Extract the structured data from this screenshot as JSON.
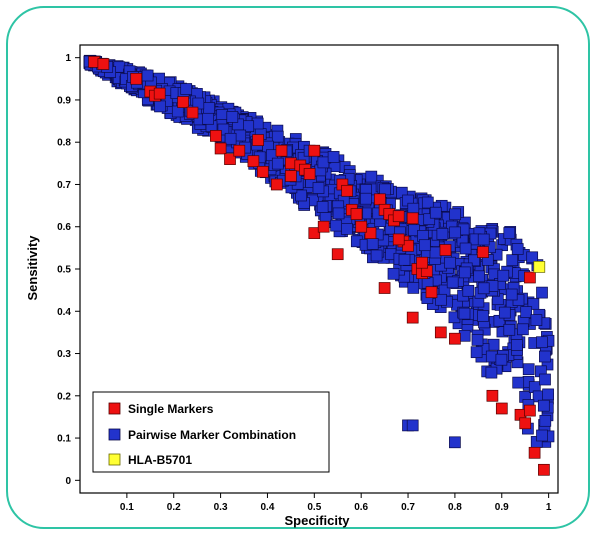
{
  "chart_data": {
    "type": "scatter",
    "title": "",
    "xlabel": "Specificity",
    "ylabel": "Sensitivity",
    "xlim": [
      0,
      1.02
    ],
    "ylim": [
      -0.03,
      1.03
    ],
    "x_ticks": [
      "0.1",
      "0.2",
      "0.3",
      "0.4",
      "0.5",
      "0.6",
      "0.7",
      "0.8",
      "0.9",
      "1"
    ],
    "y_ticks": [
      "0",
      "0.1",
      "0.2",
      "0.3",
      "0.4",
      "0.5",
      "0.6",
      "0.7",
      "0.8",
      "0.9",
      "1"
    ],
    "grid": false,
    "legend_position": "bottom-left",
    "series": [
      {
        "name": "Pairwise Marker Combination",
        "color": "#2233cc",
        "marker": "square",
        "envelope_upper": [
          [
            0.02,
            0.995
          ],
          [
            0.1,
            0.975
          ],
          [
            0.2,
            0.94
          ],
          [
            0.3,
            0.89
          ],
          [
            0.4,
            0.84
          ],
          [
            0.5,
            0.79
          ],
          [
            0.6,
            0.73
          ],
          [
            0.7,
            0.68
          ],
          [
            0.8,
            0.64
          ],
          [
            0.9,
            0.6
          ],
          [
            0.95,
            0.57
          ],
          [
            0.98,
            0.5
          ],
          [
            1.0,
            0.35
          ]
        ],
        "envelope_lower": [
          [
            0.02,
            0.985
          ],
          [
            0.1,
            0.93
          ],
          [
            0.2,
            0.86
          ],
          [
            0.3,
            0.8
          ],
          [
            0.4,
            0.72
          ],
          [
            0.5,
            0.63
          ],
          [
            0.6,
            0.55
          ],
          [
            0.7,
            0.46
          ],
          [
            0.8,
            0.37
          ],
          [
            0.85,
            0.28
          ],
          [
            0.9,
            0.2
          ],
          [
            0.95,
            0.12
          ],
          [
            1.0,
            0.05
          ]
        ],
        "values": [
          [
            0.7,
            0.13
          ],
          [
            0.71,
            0.13
          ],
          [
            0.8,
            0.09
          ]
        ]
      },
      {
        "name": "Single Markers",
        "color": "#ee1111",
        "marker": "square",
        "values": [
          [
            0.03,
            0.99
          ],
          [
            0.05,
            0.985
          ],
          [
            0.12,
            0.95
          ],
          [
            0.15,
            0.92
          ],
          [
            0.16,
            0.91
          ],
          [
            0.17,
            0.915
          ],
          [
            0.22,
            0.895
          ],
          [
            0.24,
            0.87
          ],
          [
            0.29,
            0.815
          ],
          [
            0.3,
            0.785
          ],
          [
            0.32,
            0.76
          ],
          [
            0.34,
            0.78
          ],
          [
            0.37,
            0.755
          ],
          [
            0.38,
            0.805
          ],
          [
            0.39,
            0.73
          ],
          [
            0.43,
            0.78
          ],
          [
            0.45,
            0.75
          ],
          [
            0.47,
            0.745
          ],
          [
            0.48,
            0.735
          ],
          [
            0.49,
            0.725
          ],
          [
            0.5,
            0.78
          ],
          [
            0.42,
            0.7
          ],
          [
            0.5,
            0.585
          ],
          [
            0.52,
            0.6
          ],
          [
            0.55,
            0.535
          ],
          [
            0.56,
            0.7
          ],
          [
            0.57,
            0.685
          ],
          [
            0.58,
            0.64
          ],
          [
            0.59,
            0.63
          ],
          [
            0.62,
            0.585
          ],
          [
            0.64,
            0.665
          ],
          [
            0.65,
            0.64
          ],
          [
            0.66,
            0.63
          ],
          [
            0.67,
            0.615
          ],
          [
            0.68,
            0.625
          ],
          [
            0.69,
            0.565
          ],
          [
            0.7,
            0.555
          ],
          [
            0.71,
            0.62
          ],
          [
            0.72,
            0.5
          ],
          [
            0.73,
            0.49
          ],
          [
            0.74,
            0.495
          ],
          [
            0.75,
            0.445
          ],
          [
            0.73,
            0.515
          ],
          [
            0.78,
            0.545
          ],
          [
            0.65,
            0.455
          ],
          [
            0.71,
            0.385
          ],
          [
            0.77,
            0.35
          ],
          [
            0.8,
            0.335
          ],
          [
            0.86,
            0.54
          ],
          [
            0.88,
            0.2
          ],
          [
            0.9,
            0.17
          ],
          [
            0.94,
            0.155
          ],
          [
            0.95,
            0.135
          ],
          [
            0.96,
            0.165
          ],
          [
            0.97,
            0.065
          ],
          [
            0.99,
            0.025
          ],
          [
            0.96,
            0.48
          ],
          [
            0.68,
            0.57
          ],
          [
            0.6,
            0.6
          ],
          [
            0.45,
            0.72
          ]
        ]
      },
      {
        "name": "HLA-B5701",
        "color": "#ffff33",
        "marker": "square",
        "values": [
          [
            0.98,
            0.505
          ]
        ]
      }
    ]
  }
}
